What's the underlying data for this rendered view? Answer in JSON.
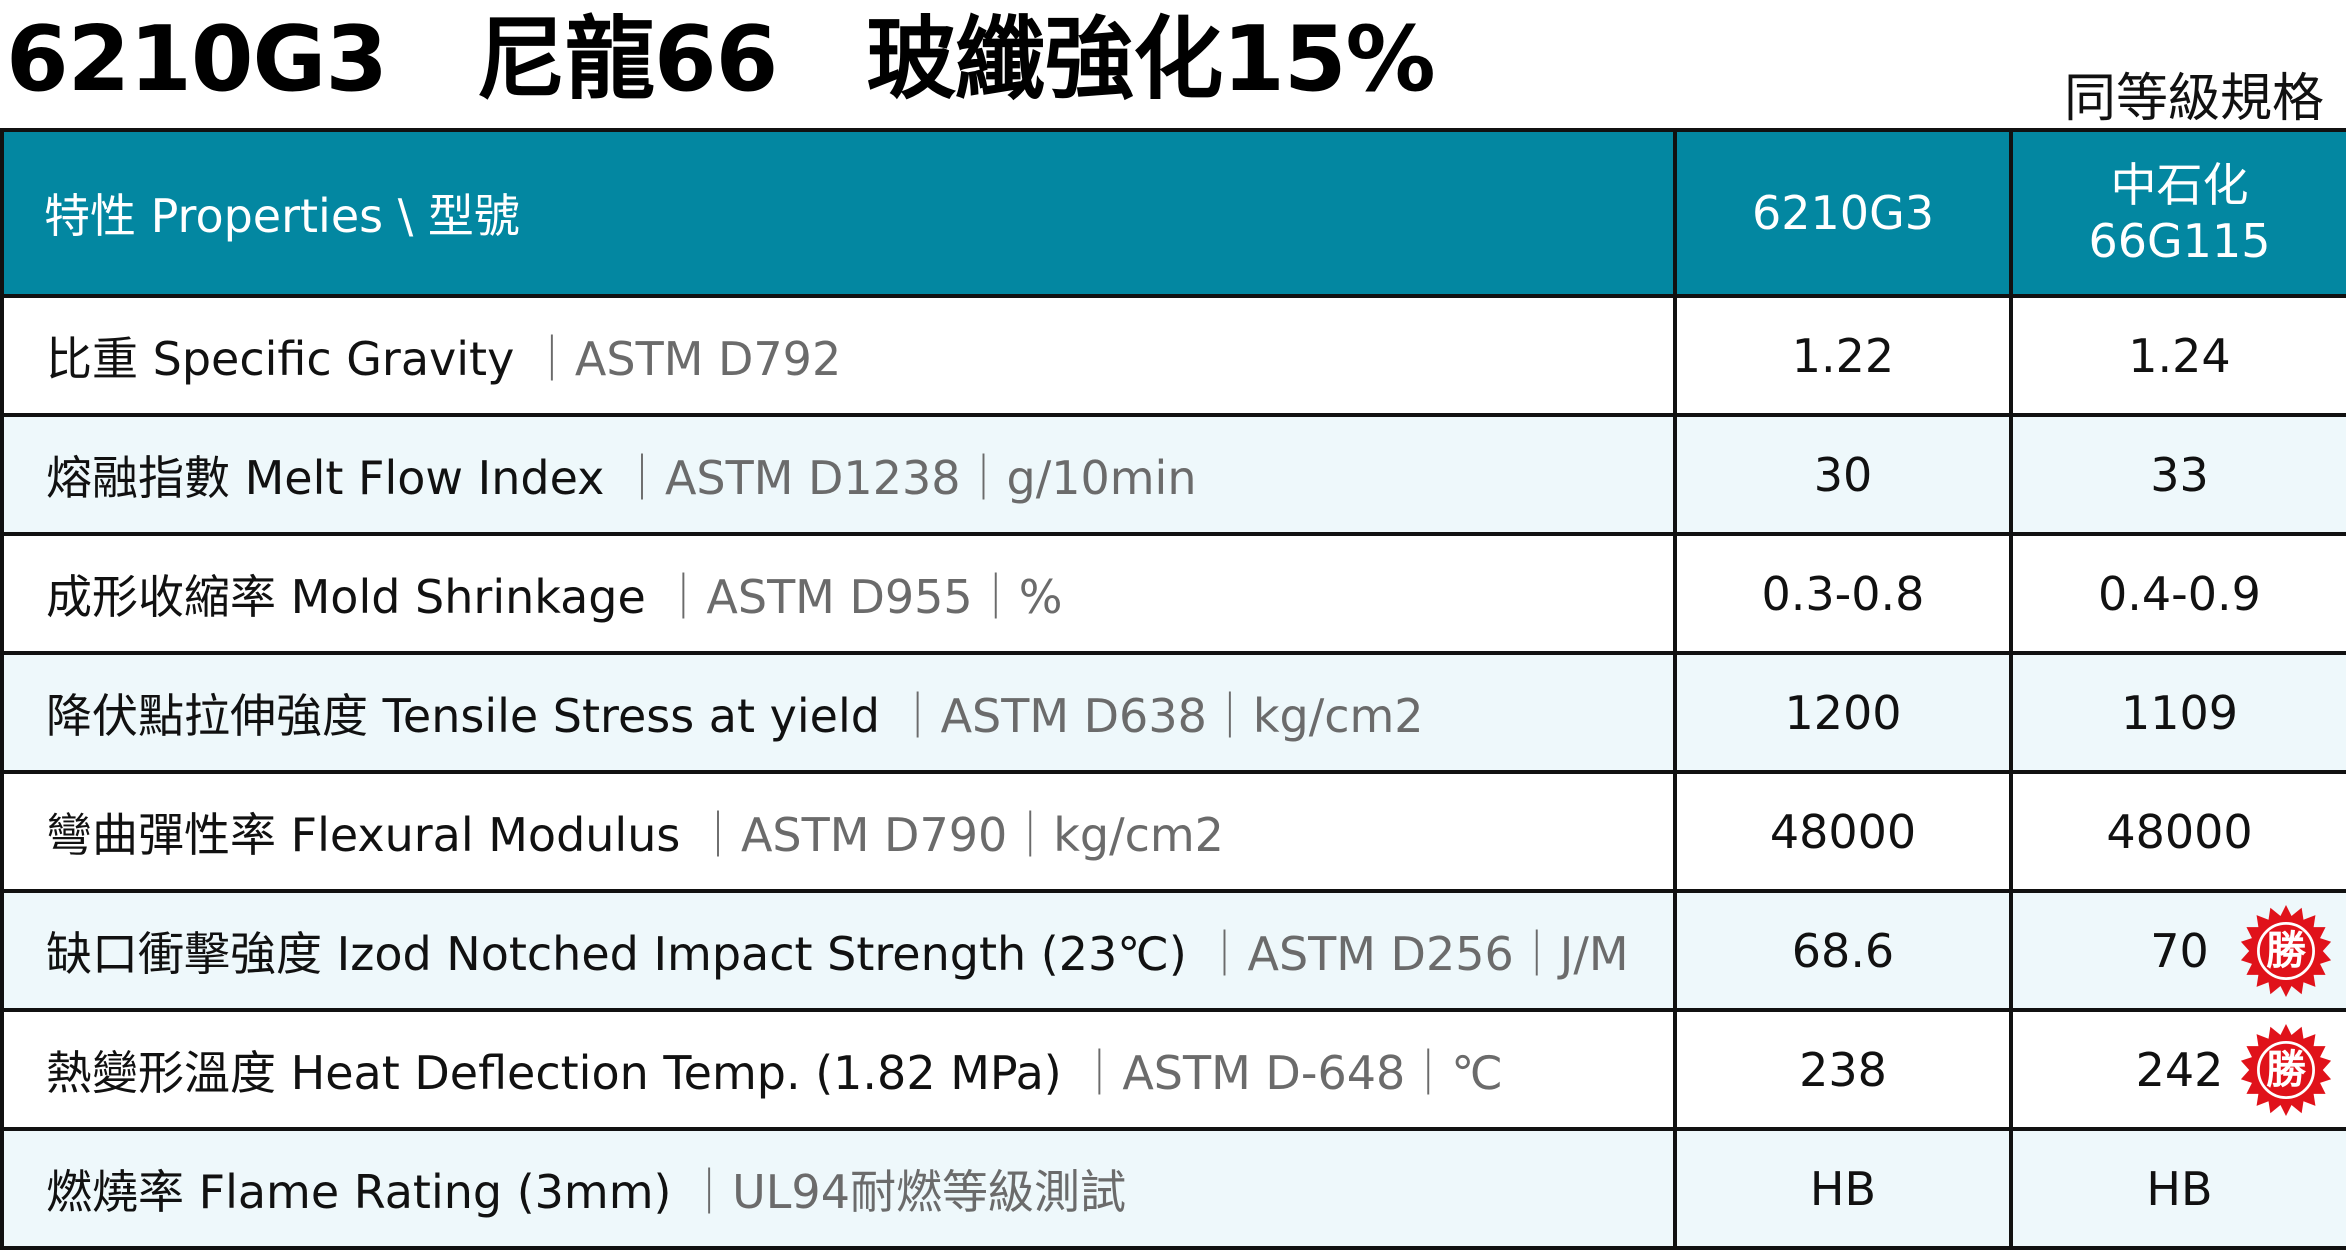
{
  "header": {
    "title": "6210G3　尼龍66　玻纖強化15%",
    "subtitle": "同等級規格"
  },
  "table": {
    "columns": [
      "特性 Properties \\ 型號",
      "6210G3",
      "中石化",
      "66G115"
    ],
    "rows": [
      {
        "name": "比重 Specific Gravity",
        "meta": "｜ASTM D792",
        "v1": "1.22",
        "v2": "1.24"
      },
      {
        "name": "熔融指數 Melt Flow Index",
        "meta": "｜ASTM D1238｜g/10min",
        "v1": "30",
        "v2": "33"
      },
      {
        "name": "成形收縮率 Mold Shrinkage",
        "meta": "｜ASTM D955｜%",
        "v1": "0.3-0.8",
        "v2": "0.4-0.9"
      },
      {
        "name": "降伏點拉伸強度 Tensile Stress at yield",
        "meta": "｜ASTM D638｜kg/cm2",
        "v1": "1200",
        "v2": "1109"
      },
      {
        "name": "彎曲彈性率 Flexural Modulus",
        "meta": "｜ASTM D790｜kg/cm2",
        "v1": "48000",
        "v2": "48000"
      },
      {
        "name": "缺口衝擊強度 Izod Notched Impact Strength (23℃)",
        "meta": "｜ASTM D256｜J/M",
        "v1": "68.6",
        "v2": "70"
      },
      {
        "name": "熱變形溫度 Heat Deflection Temp. (1.82 MPa)",
        "meta": "｜ASTM D-648｜℃",
        "v1": "238",
        "v2": "242"
      },
      {
        "name": "燃燒率 Flame Rating (3mm)",
        "meta": "｜UL94耐燃等級測試",
        "v1": "HB",
        "v2": "HB"
      }
    ],
    "badge_label": "勝"
  },
  "colors": {
    "header_bg": "#0387a1",
    "alt_row_bg": "#eef8fb",
    "badge": "#e0121a"
  }
}
